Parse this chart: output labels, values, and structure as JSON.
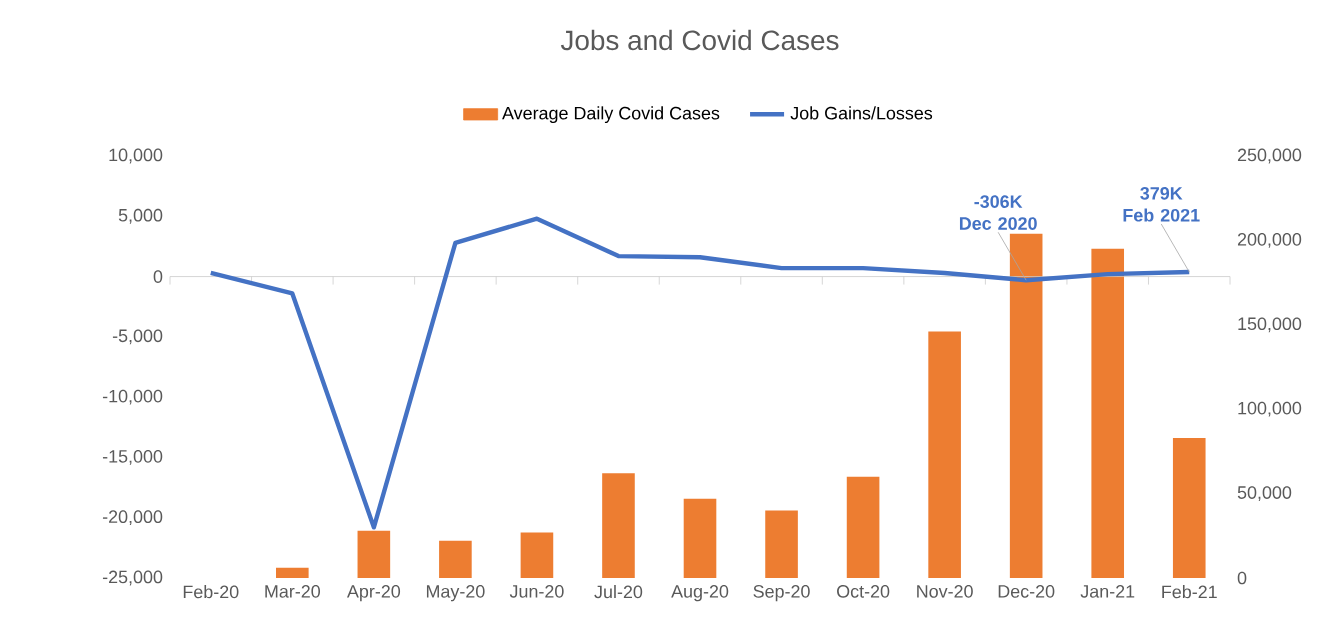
{
  "chart_data": {
    "type": "bar",
    "title": "Jobs and Covid Cases",
    "categories": [
      "Feb-20",
      "Mar-20",
      "Apr-20",
      "May-20",
      "Jun-20",
      "Jul-20",
      "Aug-20",
      "Sep-20",
      "Oct-20",
      "Nov-20",
      "Dec-20",
      "Jan-21",
      "Feb-21"
    ],
    "series": [
      {
        "name": "Average Daily Covid Cases",
        "axis": "y2",
        "color": "#ed7d31",
        "values": [
          0,
          6000,
          28000,
          22000,
          27000,
          62000,
          47000,
          40000,
          60000,
          146000,
          204000,
          195000,
          83000
        ]
      },
      {
        "name": "Job Gains/Losses",
        "type": "line",
        "axis": "y",
        "color": "#4472c4",
        "values": [
          300,
          -1400,
          -20800,
          2800,
          4800,
          1700,
          1600,
          700,
          700,
          300,
          -306,
          200,
          379
        ]
      }
    ],
    "ylim": [
      -25000,
      10000
    ],
    "yticks": [
      {
        "value": -25000,
        "label": "-25,000"
      },
      {
        "value": -20000,
        "label": "-20,000"
      },
      {
        "value": -15000,
        "label": "-15,000"
      },
      {
        "value": -10000,
        "label": "-10,000"
      },
      {
        "value": -5000,
        "label": "-5,000"
      },
      0,
      {
        "value": 5000,
        "label": "5,000"
      },
      {
        "value": 10000,
        "label": "10,000"
      }
    ],
    "y2lim": [
      0,
      250000
    ],
    "y2ticks": [
      0,
      {
        "value": 50000,
        "label": "50,000"
      },
      {
        "value": 100000,
        "label": "100,000"
      },
      {
        "value": 150000,
        "label": "150,000"
      },
      {
        "value": 200000,
        "label": "200,000"
      },
      {
        "value": 250000,
        "label": "250,000"
      }
    ],
    "legend": "top",
    "marker": "none",
    "annotations": [
      {
        "text": "-306K Dec 2020",
        "x": "Dec-20",
        "y": -306
      },
      {
        "text": "379K Feb 2021",
        "x": "Feb-21",
        "y": 379
      }
    ]
  }
}
